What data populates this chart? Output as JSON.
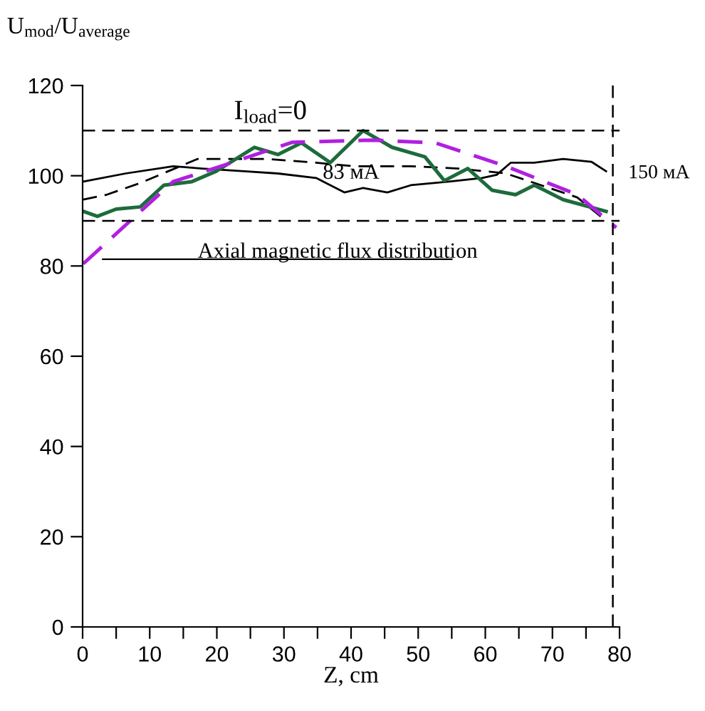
{
  "chart_data": {
    "type": "line",
    "ylabel": "U$_{mod}$/U$_{average}$",
    "xlabel": "Z, cm",
    "series": [
      {
        "color": "#000000",
        "line_style": "solid",
        "x": [
          0.1,
          6.4,
          13.5,
          17.8,
          24.1,
          29.1,
          34.8,
          39.0,
          41.8,
          45.4,
          48.9,
          54.6,
          59.5,
          61.7,
          63.8,
          67.3,
          71.6,
          75.8,
          78.0
        ],
        "values": [
          98.7,
          100.5,
          102.1,
          101.6,
          101.0,
          100.5,
          99.5,
          96.3,
          97.3,
          96.3,
          97.9,
          98.7,
          99.5,
          100.2,
          102.9,
          102.9,
          103.7,
          103.1,
          101.0
        ]
      },
      {
        "color": "#000000",
        "line_style": "dashed",
        "x": [
          0.1,
          3.6,
          8.6,
          17.1,
          27.7,
          34.8,
          40.4,
          48.9,
          56.0,
          63.1,
          67.3,
          73.7,
          78.0
        ],
        "values": [
          94.7,
          95.8,
          98.4,
          103.7,
          103.7,
          102.9,
          102.1,
          102.1,
          101.6,
          100.5,
          98.4,
          95.2,
          90.0
        ]
      },
      {
        "color": "#1e6b3c",
        "line_style": "solid",
        "x": [
          0.1,
          2.2,
          5.0,
          8.6,
          12.1,
          16.3,
          19.9,
          25.6,
          29.1,
          32.6,
          36.9,
          41.8,
          46.1,
          51.0,
          53.9,
          57.4,
          61.0,
          64.5,
          67.3,
          71.6,
          78.0
        ],
        "values": [
          92.1,
          91.0,
          92.6,
          93.1,
          97.9,
          98.7,
          101.0,
          106.3,
          104.7,
          107.3,
          102.9,
          110.0,
          106.3,
          104.2,
          98.9,
          101.6,
          96.8,
          95.8,
          97.9,
          94.7,
          92.1
        ]
      },
      {
        "color": "#b020e0",
        "line_style": "dashed",
        "x": [
          0.1,
          13.5,
          20.6,
          31.2,
          43.3,
          52.5,
          63.1,
          73.7,
          79.5
        ],
        "values": [
          80.5,
          98.7,
          102.1,
          107.4,
          107.9,
          107.3,
          102.1,
          95.8,
          88.5
        ]
      }
    ],
    "xlim": [
      0,
      80
    ],
    "ylim": [
      0,
      120
    ],
    "xticks": [
      0,
      {
        "value": 5,
        "label": null
      },
      10,
      {
        "value": 15,
        "label": null
      },
      20,
      {
        "value": 25,
        "label": null
      },
      30,
      {
        "value": 35,
        "label": null
      },
      40,
      {
        "value": 45,
        "label": null
      },
      50,
      {
        "value": 55,
        "label": null
      },
      60,
      {
        "value": 65,
        "label": null
      },
      70,
      {
        "value": 75,
        "label": null
      },
      80
    ],
    "yticks": [
      0,
      20,
      40,
      60,
      80,
      100,
      120
    ],
    "ref_lines": [
      {
        "axis": "y",
        "value": 110,
        "color": "#000000",
        "line_style": "dashed"
      },
      {
        "axis": "y",
        "value": 90,
        "color": "#000000",
        "line_style": "dashed"
      },
      {
        "axis": "x",
        "value": 79,
        "color": "#000000",
        "line_style": "dashed"
      }
    ],
    "annotations": [
      "I$_{load}$=0",
      "83 мА",
      "150 мА",
      "Axial magnetic flux distribution"
    ],
    "grid": false,
    "legend": false
  }
}
